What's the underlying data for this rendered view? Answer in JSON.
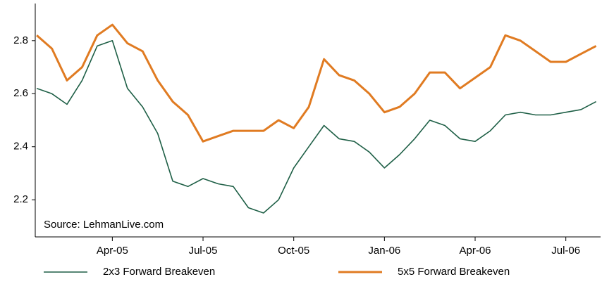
{
  "chart_data": {
    "type": "line",
    "annotation": "Source: LehmanLive.com",
    "x": [
      0.5,
      1,
      1.5,
      2,
      2.5,
      3,
      3.5,
      4,
      4.5,
      5,
      5.5,
      6,
      6.5,
      7,
      7.5,
      8,
      8.5,
      9,
      9.5,
      10,
      10.5,
      11,
      11.5,
      12,
      12.5,
      13,
      13.5,
      14,
      14.5,
      15,
      15.5,
      16,
      16.5,
      17,
      17.5,
      18,
      18.5,
      19
    ],
    "series": [
      {
        "name": "2x3 Forward Breakeven",
        "color": "#1e5f46",
        "values": [
          2.62,
          2.6,
          2.56,
          2.65,
          2.78,
          2.8,
          2.62,
          2.55,
          2.45,
          2.27,
          2.25,
          2.28,
          2.26,
          2.25,
          2.17,
          2.15,
          2.2,
          2.32,
          2.4,
          2.48,
          2.43,
          2.42,
          2.38,
          2.32,
          2.37,
          2.43,
          2.5,
          2.48,
          2.43,
          2.42,
          2.46,
          2.52,
          2.53,
          2.52,
          2.52,
          2.53,
          2.54,
          2.57
        ]
      },
      {
        "name": "5x5 Forward Breakeven",
        "color": "#e07b22",
        "values": [
          2.82,
          2.77,
          2.65,
          2.7,
          2.82,
          2.86,
          2.79,
          2.76,
          2.65,
          2.57,
          2.52,
          2.42,
          2.44,
          2.46,
          2.46,
          2.46,
          2.5,
          2.47,
          2.55,
          2.73,
          2.67,
          2.65,
          2.6,
          2.53,
          2.55,
          2.6,
          2.68,
          2.68,
          2.62,
          2.66,
          2.7,
          2.82,
          2.8,
          2.76,
          2.72,
          2.72,
          2.75,
          2.78
        ]
      }
    ],
    "xlim": [
      0.45,
      19.15
    ],
    "xticks": [
      {
        "value": 3,
        "label": "Apr-05"
      },
      {
        "value": 6,
        "label": "Jul-05"
      },
      {
        "value": 9,
        "label": "Oct-05"
      },
      {
        "value": 12,
        "label": "Jan-06"
      },
      {
        "value": 15,
        "label": "Apr-06"
      },
      {
        "value": 18,
        "label": "Jul-06"
      }
    ],
    "ylim": [
      2.06,
      2.94
    ],
    "yticks": [
      {
        "value": 2.2,
        "label": "2.2"
      },
      {
        "value": 2.4,
        "label": "2.4"
      },
      {
        "value": 2.6,
        "label": "2.6"
      },
      {
        "value": 2.8,
        "label": "2.8"
      }
    ],
    "legend": "bottom"
  }
}
